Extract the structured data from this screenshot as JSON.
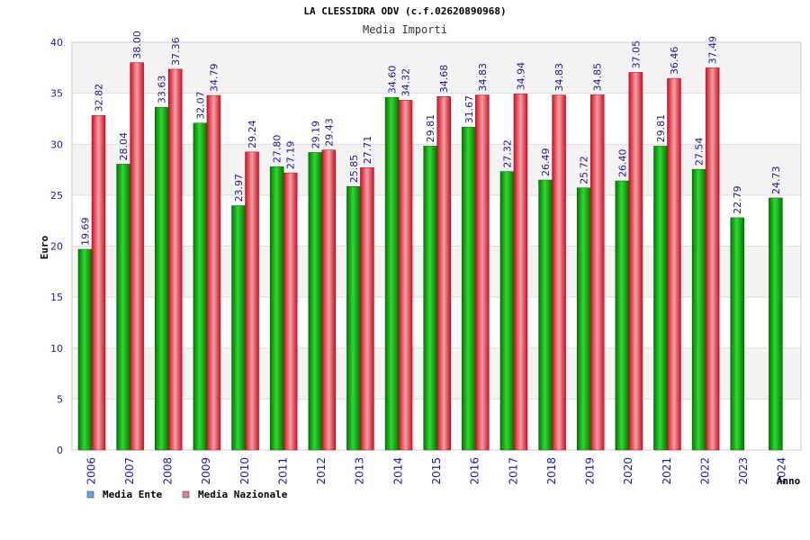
{
  "chart_data": {
    "type": "bar",
    "title": "LA CLESSIDRA ODV (c.f.02620890968)",
    "subtitle": "Media Importi",
    "xlabel": "Anno",
    "ylabel": "Euro",
    "ylim": [
      0,
      40
    ],
    "yticks": [
      "0",
      "5",
      "10",
      "15",
      "20",
      "25",
      "30",
      "35",
      "40"
    ],
    "grid": true,
    "legend_position": "bottom-left",
    "categories": [
      "2006",
      "2007",
      "2008",
      "2009",
      "2010",
      "2011",
      "2012",
      "2013",
      "2014",
      "2015",
      "2016",
      "2017",
      "2018",
      "2019",
      "2020",
      "2021",
      "2022",
      "2023",
      "2024"
    ],
    "series": [
      {
        "name": "Media Ente",
        "color": "#00a000",
        "legend_color": "#66a3e0",
        "values": [
          19.69,
          28.04,
          33.63,
          32.07,
          23.97,
          27.8,
          29.19,
          25.85,
          34.6,
          29.81,
          31.67,
          27.32,
          26.49,
          25.72,
          26.4,
          29.81,
          27.54,
          22.79,
          24.73
        ],
        "labels": [
          "19.69",
          "28.04",
          "33.63",
          "32.07",
          "23.97",
          "27.80",
          "29.19",
          "25.85",
          "34.60",
          "29.81",
          "31.67",
          "27.32",
          "26.49",
          "25.72",
          "26.40",
          "29.81",
          "27.54",
          "22.79",
          "24.73"
        ]
      },
      {
        "name": "Media Nazionale",
        "color": "#e02030",
        "legend_color": "#e080a0",
        "values": [
          32.82,
          38.0,
          37.36,
          34.79,
          29.24,
          27.19,
          29.43,
          27.71,
          34.32,
          34.68,
          34.83,
          34.94,
          34.83,
          34.85,
          37.05,
          36.46,
          37.49,
          null,
          null
        ],
        "labels": [
          "32.82",
          "38.00",
          "37.36",
          "34.79",
          "29.24",
          "27.19",
          "29.43",
          "27.71",
          "34.32",
          "34.68",
          "34.83",
          "34.94",
          "34.83",
          "34.85",
          "37.05",
          "36.46",
          "37.49",
          null,
          null
        ]
      }
    ]
  }
}
